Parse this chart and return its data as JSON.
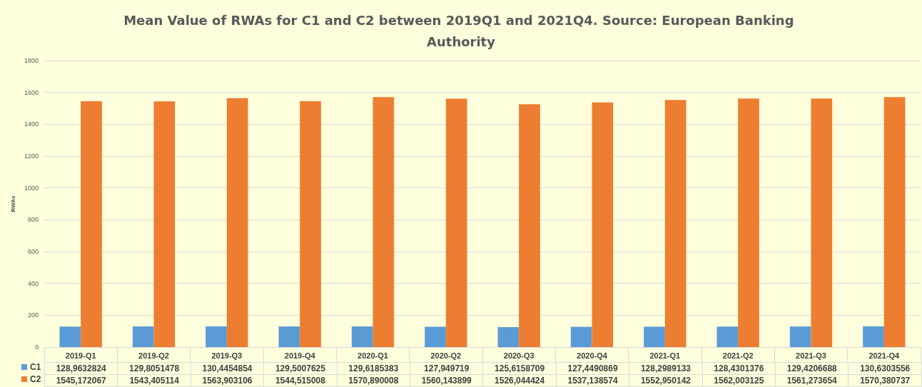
{
  "chart_data": {
    "type": "bar",
    "title": "Mean Value of RWAs for C1 and C2 between 2019Q1 and 2021Q4. Source: European Banking Authority",
    "ylabel": "RWAs",
    "categories": [
      "2019-Q1",
      "2019-Q2",
      "2019-Q3",
      "2019-Q4",
      "2020-Q1",
      "2020-Q2",
      "2020-Q3",
      "2020-Q4",
      "2021-Q1",
      "2021-Q2",
      "2021-Q3",
      "2021-Q4"
    ],
    "series": [
      {
        "name": "C1",
        "color": "#5b9bd5",
        "values": [
          128.9632824,
          129.8051478,
          130.4454854,
          129.5007625,
          129.6185383,
          127.949719,
          125.6158709,
          127.4490869,
          128.2989133,
          128.4301376,
          129.4206688,
          130.6303556
        ],
        "value_labels": [
          "128,9632824",
          "129,8051478",
          "130,4454854",
          "129,5007625",
          "129,6185383",
          "127,949719",
          "125,6158709",
          "127,4490869",
          "128,2989133",
          "128,4301376",
          "129,4206688",
          "130,6303556"
        ]
      },
      {
        "name": "C2",
        "color": "#ed7d31",
        "values": [
          1545.172067,
          1543.405114,
          1563.903106,
          1544.515008,
          1570.890008,
          1560.143899,
          1526.044424,
          1537.138574,
          1552.950142,
          1562.003125,
          1561.273654,
          1570.380737
        ],
        "value_labels": [
          "1545,172067",
          "1543,405114",
          "1563,903106",
          "1544,515008",
          "1570,890008",
          "1560,143899",
          "1526,044424",
          "1537,138574",
          "1552,950142",
          "1562,003125",
          "1561,273654",
          "1570,380737"
        ]
      }
    ],
    "ylim": [
      0,
      1800
    ],
    "yticks": [
      0,
      200,
      400,
      600,
      800,
      1000,
      1200,
      1400,
      1600,
      1800
    ],
    "grid": "y",
    "legend": "bottom"
  }
}
